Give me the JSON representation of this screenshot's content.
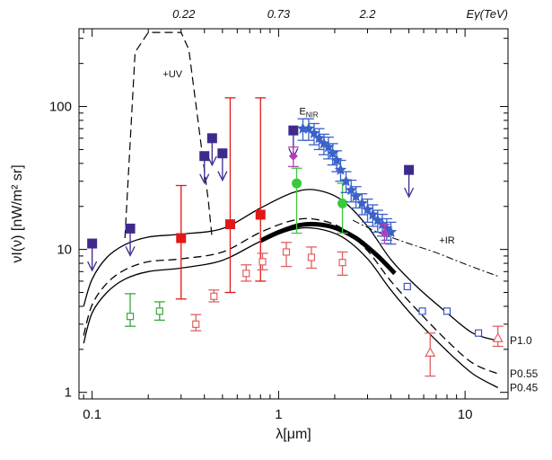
{
  "chart_data": {
    "type": "scatter",
    "title": "",
    "xlabel": "λ[μm]",
    "ylabel": "νI(ν) [nW/m² sr]",
    "xscale": "log",
    "yscale": "log",
    "xlim": [
      0.085,
      17
    ],
    "ylim": [
      0.9,
      350
    ],
    "x_ticks": [
      {
        "value": 0.1,
        "label": "0.1"
      },
      {
        "value": 1,
        "label": "1"
      },
      {
        "value": 10,
        "label": "10"
      }
    ],
    "y_ticks": [
      {
        "value": 1,
        "label": "1"
      },
      {
        "value": 10,
        "label": "10"
      },
      {
        "value": 100,
        "label": "100"
      }
    ],
    "top_axis": {
      "title": "Eγ(TeV)",
      "ticks": [
        {
          "value": 0.31,
          "label": "0.22"
        },
        {
          "value": 1.0,
          "label": "0.73"
        },
        {
          "value": 3.0,
          "label": "2.2"
        }
      ]
    },
    "annotations": [
      {
        "text": "+UV",
        "x": 0.27,
        "y": 160
      },
      {
        "text": "E",
        "sub": "NIR",
        "x": 1.45,
        "y": 88
      },
      {
        "text": "+IR",
        "x": 8.0,
        "y": 11
      }
    ],
    "series": [
      {
        "name": "P1.0",
        "kind": "line",
        "style": "solid",
        "color": "#000000",
        "x": [
          0.09,
          0.1,
          0.12,
          0.15,
          0.2,
          0.3,
          0.5,
          0.8,
          1.2,
          1.6,
          2.2,
          3,
          4,
          5.5,
          8,
          11,
          15
        ],
        "y": [
          4.0,
          6.2,
          8.8,
          10.8,
          12.2,
          12.8,
          14,
          19.5,
          25,
          26,
          22,
          14.5,
          8.5,
          5.5,
          3.6,
          2.6,
          2.3
        ]
      },
      {
        "name": "P0.55",
        "kind": "line",
        "style": "dashed",
        "color": "#000000",
        "x": [
          0.09,
          0.1,
          0.12,
          0.15,
          0.2,
          0.3,
          0.5,
          0.8,
          1.2,
          1.6,
          2.2,
          3,
          4,
          5.5,
          8,
          11,
          15
        ],
        "y": [
          2.5,
          4.1,
          5.8,
          7.2,
          8.2,
          8.6,
          9.6,
          13.2,
          16,
          16.2,
          14,
          9.8,
          6,
          3.8,
          2.3,
          1.6,
          1.35
        ]
      },
      {
        "name": "P0.45",
        "kind": "line",
        "style": "solid",
        "color": "#000000",
        "x": [
          0.09,
          0.1,
          0.12,
          0.15,
          0.2,
          0.3,
          0.5,
          0.8,
          1.2,
          1.6,
          2.2,
          3,
          4,
          5.5,
          8,
          11,
          15
        ],
        "y": [
          2.2,
          3.6,
          5.0,
          6.2,
          7.0,
          7.4,
          8.4,
          11.4,
          13.8,
          14,
          12.2,
          8.6,
          5.2,
          3.2,
          1.95,
          1.35,
          1.08
        ]
      },
      {
        "name": "+UV",
        "kind": "line",
        "style": "dashed",
        "color": "#000000",
        "x": [
          0.15,
          0.17,
          0.2,
          0.3,
          0.33,
          0.38,
          0.42,
          0.44
        ],
        "y": [
          12,
          240,
          330,
          330,
          250,
          60,
          22,
          12
        ]
      },
      {
        "name": "+IR",
        "kind": "line",
        "style": "dashdot",
        "color": "#000000",
        "x": [
          2.5,
          3.5,
          5,
          7,
          10,
          15
        ],
        "y": [
          16,
          13,
          11,
          9.5,
          7.9,
          6.5
        ]
      },
      {
        "name": "thick",
        "kind": "line",
        "style": "thick",
        "color": "#000000",
        "x": [
          0.8,
          1.0,
          1.3,
          1.6,
          2.0,
          2.6,
          3.4,
          4.2
        ],
        "y": [
          11.5,
          13.2,
          14.8,
          15.0,
          14.2,
          12.0,
          9.0,
          6.8
        ]
      },
      {
        "name": "UV upper limits",
        "kind": "points",
        "marker": "filled-square",
        "color": "#3f2a8c",
        "x": [
          0.1,
          0.16,
          0.4,
          0.44,
          0.5,
          1.2,
          5.0
        ],
        "y": [
          11,
          14,
          45,
          60,
          47,
          68,
          36
        ],
        "arrow": true
      },
      {
        "name": "Red filled squares",
        "kind": "points",
        "marker": "filled-square",
        "color": "#e01818",
        "x": [
          0.3,
          0.55,
          0.8
        ],
        "y": [
          12,
          15,
          17.5
        ],
        "err_low": [
          4.5,
          5,
          6
        ],
        "err_high": [
          28,
          115,
          115
        ]
      },
      {
        "name": "Red open squares",
        "kind": "points",
        "marker": "open-square",
        "color": "#e06060",
        "x": [
          0.36,
          0.45,
          0.67,
          0.82,
          1.1,
          1.5,
          2.2
        ],
        "y": [
          3.0,
          4.7,
          6.8,
          8.2,
          9.6,
          8.8,
          8.1
        ],
        "err_low": [
          2.7,
          4.3,
          6.0,
          7.2,
          7.6,
          7.4,
          6.6
        ],
        "err_high": [
          3.5,
          5.2,
          7.8,
          9.4,
          11.2,
          10.4,
          9.6
        ]
      },
      {
        "name": "Red open triangles",
        "kind": "points",
        "marker": "open-triangle",
        "color": "#e06060",
        "x": [
          6.5,
          15
        ],
        "y": [
          1.9,
          2.4
        ],
        "err_low": [
          1.3,
          2.1
        ],
        "err_high": [
          2.6,
          2.9
        ]
      },
      {
        "name": "Green open squares",
        "kind": "points",
        "marker": "open-square",
        "color": "#3aa83a",
        "x": [
          0.16,
          0.23
        ],
        "y": [
          3.4,
          3.7
        ],
        "err_low": [
          2.9,
          3.2
        ],
        "err_high": [
          4.9,
          4.3
        ]
      },
      {
        "name": "Green circles",
        "kind": "points",
        "marker": "filled-circle",
        "color": "#3cc83c",
        "x": [
          1.25,
          2.2
        ],
        "y": [
          29,
          21
        ],
        "err_low": [
          13,
          13
        ],
        "err_high": [
          37,
          29
        ]
      },
      {
        "name": "Blue NIR",
        "kind": "points",
        "marker": "filled-star",
        "color": "#3a62c8",
        "x": [
          1.35,
          1.45,
          1.55,
          1.65,
          1.75,
          1.85,
          1.95,
          2.05,
          2.15,
          2.3,
          2.45,
          2.6,
          2.8,
          3.0,
          3.2,
          3.4,
          3.6,
          3.8,
          4.0
        ],
        "y": [
          70,
          70,
          65,
          60,
          55,
          52,
          47,
          42,
          36,
          30,
          26,
          23.5,
          21,
          19,
          17.5,
          16,
          15,
          14,
          13.2
        ],
        "err_low": [
          58,
          58,
          54,
          50,
          46,
          43,
          39,
          35,
          30,
          25,
          21.5,
          19.5,
          17.5,
          15.5,
          14.5,
          13.2,
          12.4,
          11.6,
          10.9
        ],
        "err_high": [
          82,
          82,
          76,
          70,
          64,
          61,
          55,
          49,
          42,
          35,
          30.5,
          27.5,
          24.5,
          22.5,
          20.5,
          18.8,
          17.6,
          16.4,
          15.5
        ]
      },
      {
        "name": "Blue open squares",
        "kind": "points",
        "marker": "open-square",
        "color": "#3a52c8",
        "x": [
          4.9,
          5.9,
          8.0,
          11.8
        ],
        "y": [
          5.5,
          3.7,
          3.7,
          2.6
        ]
      },
      {
        "name": "Purple diamonds",
        "kind": "points",
        "marker": "filled-diamond",
        "color": "#b040b8",
        "x": [
          1.2,
          3.7
        ],
        "y": [
          45,
          13
        ],
        "err_low": [
          38,
          11
        ],
        "err_high": [
          52,
          15
        ]
      }
    ]
  }
}
